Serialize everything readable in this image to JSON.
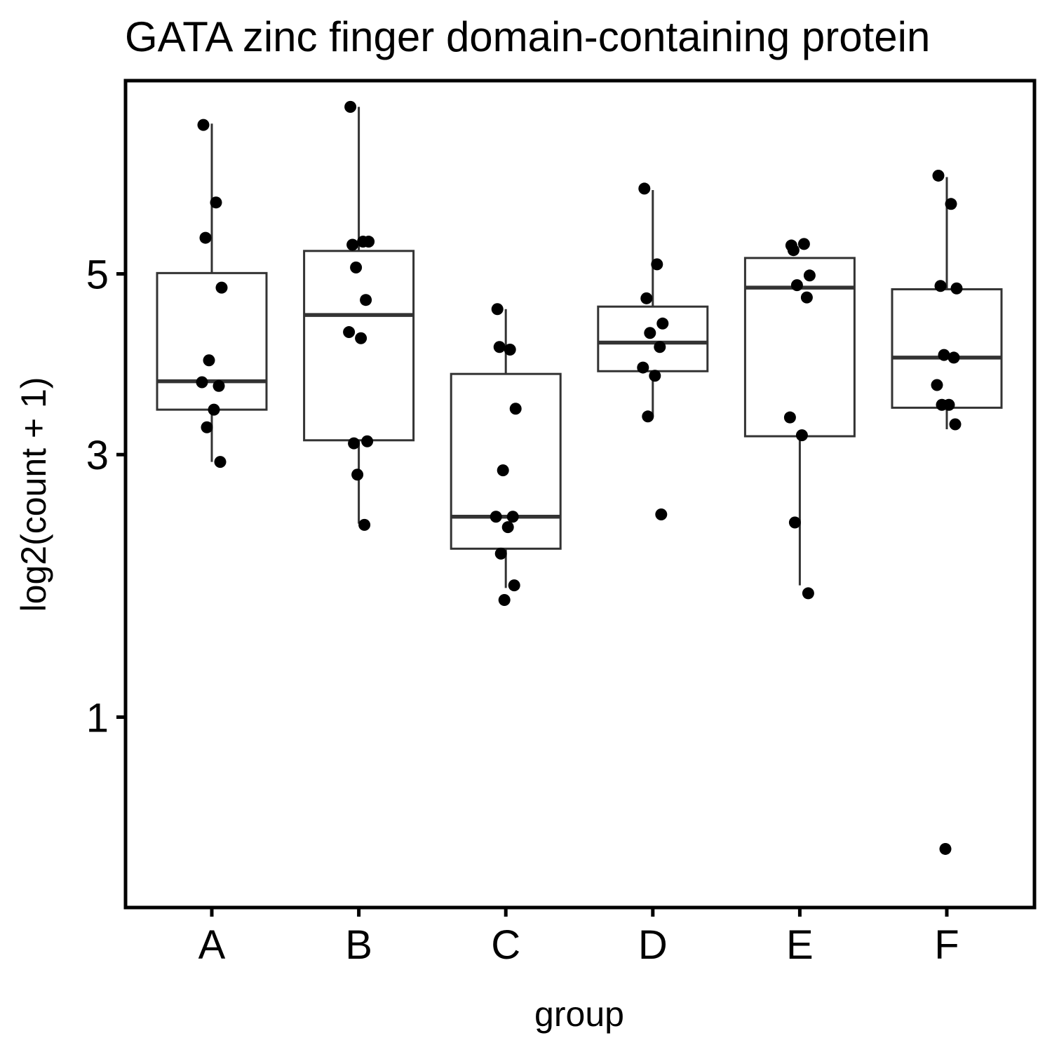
{
  "chart_data": {
    "type": "box",
    "title": "GATA zinc finger domain-containing protein",
    "xlabel": "group",
    "ylabel": "log2(count + 1)",
    "y_scale": "sqrt",
    "ylim": [
      0.22,
      7.7
    ],
    "yticks": [
      1,
      3,
      5
    ],
    "grid": false,
    "categories": [
      "A",
      "B",
      "C",
      "D",
      "E",
      "F"
    ],
    "boxes": [
      {
        "group": "A",
        "whisker_low": 2.93,
        "q1": 3.45,
        "median": 3.75,
        "q3": 5.01,
        "whisker_high": 7.05
      },
      {
        "group": "B",
        "whisker_low": 2.37,
        "q1": 3.14,
        "median": 4.5,
        "q3": 5.29,
        "whisker_high": 7.3
      },
      {
        "group": "C",
        "whisker_low": 1.85,
        "q1": 2.16,
        "median": 2.43,
        "q3": 3.83,
        "whisker_high": 4.57
      },
      {
        "group": "D",
        "whisker_low": 3.38,
        "q1": 3.86,
        "median": 4.18,
        "q3": 4.6,
        "whisker_high": 6.1
      },
      {
        "group": "E",
        "whisker_low": 1.87,
        "q1": 3.18,
        "median": 4.83,
        "q3": 5.2,
        "whisker_high": 5.2
      },
      {
        "group": "F",
        "whisker_low": 3.25,
        "q1": 3.47,
        "median": 4.01,
        "q3": 4.81,
        "whisker_high": 6.28
      }
    ],
    "points": {
      "A": [
        7.03,
        5.93,
        5.46,
        4.83,
        3.98,
        3.7,
        3.74,
        3.45,
        3.27,
        2.93
      ],
      "B": [
        7.3,
        5.41,
        5.37,
        5.41,
        5.08,
        4.68,
        4.3,
        4.23,
        3.11,
        3.13,
        2.81,
        2.36
      ],
      "C": [
        4.57,
        4.1,
        4.13,
        3.46,
        2.85,
        2.43,
        2.43,
        2.34,
        2.12,
        1.87,
        1.76
      ],
      "D": [
        6.12,
        5.12,
        4.7,
        4.4,
        4.29,
        4.13,
        3.9,
        3.81,
        3.38,
        2.45
      ],
      "E": [
        5.36,
        5.38,
        5.3,
        4.98,
        4.86,
        4.71,
        3.37,
        3.19,
        2.38,
        1.81
      ],
      "F": [
        6.3,
        5.91,
        4.85,
        4.82,
        4.04,
        4.01,
        3.71,
        3.5,
        3.5,
        3.3,
        0.4
      ]
    },
    "colors": {
      "box_line": "#333333",
      "point": "#000000",
      "panel_border": "#000000",
      "background": "#ffffff"
    }
  }
}
